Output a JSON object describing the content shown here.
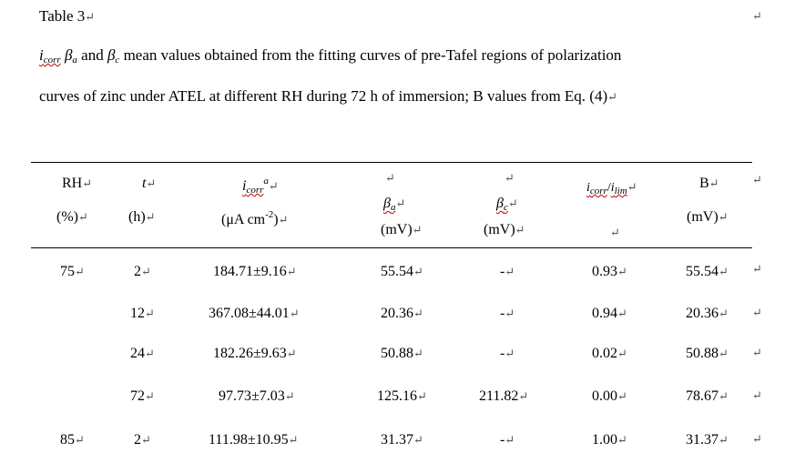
{
  "doc": {
    "table_label": "Table 3",
    "para_mark": "↵",
    "caption": {
      "sym_icorr": "i",
      "sym_icorr_sub": "corr",
      "sym_beta_a": "β",
      "sym_beta_a_sub": "a",
      "and_word": " and ",
      "sym_beta_c": "β",
      "sym_beta_c_sub": "c",
      "line1_rest": " mean values obtained from the fitting curves of pre-Tafel regions of polarization",
      "line2": "curves of zinc under ATEL at different RH during 72 h of immersion; B values from Eq. (4)"
    }
  },
  "table": {
    "headers": {
      "rh": "RH",
      "rh_unit": "(%)",
      "t": "t",
      "t_unit": "(h)",
      "icorr": "i",
      "icorr_sub": "corr",
      "icorr_sup": "a",
      "icorr_unit": "(μA cm",
      "icorr_unit_exp": "-2",
      "icorr_unit_close": ")",
      "beta_a": "β",
      "beta_a_sub": "a",
      "beta_a_unit": "(mV)",
      "beta_c": "β",
      "beta_c_sub": "c",
      "beta_c_unit": "(mV)",
      "ratio_num": "i",
      "ratio_num_sub": "corr",
      "ratio_slash": "/",
      "ratio_den": "i",
      "ratio_den_sub": "lim",
      "b": "B",
      "b_unit": "(mV)"
    },
    "rows": [
      {
        "rh": "75",
        "t": "2",
        "icorr": "184.71±9.16",
        "beta_a": "55.54",
        "beta_c": "-",
        "ratio": "0.93",
        "b": "55.54"
      },
      {
        "rh": "",
        "t": "12",
        "icorr": "367.08±44.01",
        "beta_a": "20.36",
        "beta_c": "-",
        "ratio": "0.94",
        "b": "20.36"
      },
      {
        "rh": "",
        "t": "24",
        "icorr": "182.26±9.63",
        "beta_a": "50.88",
        "beta_c": "-",
        "ratio": "0.02",
        "b": "50.88"
      },
      {
        "rh": "",
        "t": "72",
        "icorr": "97.73±7.03",
        "beta_a": "125.16",
        "beta_c": "211.82",
        "ratio": "0.00",
        "b": "78.67"
      },
      {
        "rh": "85",
        "t": "2",
        "icorr": "111.98±10.95",
        "beta_a": "31.37",
        "beta_c": "-",
        "ratio": "1.00",
        "b": "31.37"
      }
    ]
  }
}
